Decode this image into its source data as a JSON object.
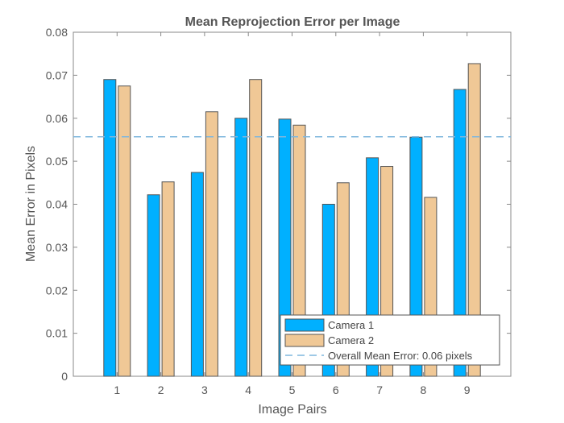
{
  "chart_data": {
    "type": "bar",
    "title": "Mean Reprojection Error per Image",
    "xlabel": "Image Pairs",
    "ylabel": "Mean Error in Pixels",
    "categories": [
      "1",
      "2",
      "3",
      "4",
      "5",
      "6",
      "7",
      "8",
      "9"
    ],
    "series": [
      {
        "name": "Camera 1",
        "color": "#00b0ff",
        "values": [
          0.069,
          0.0422,
          0.0474,
          0.06,
          0.0598,
          0.04,
          0.0508,
          0.0556,
          0.0667
        ]
      },
      {
        "name": "Camera 2",
        "color": "#f0c896",
        "values": [
          0.0675,
          0.0452,
          0.0615,
          0.069,
          0.0584,
          0.045,
          0.0488,
          0.0416,
          0.0727
        ]
      }
    ],
    "overall_mean": 0.0557,
    "overall_mean_color": "#7fb7dd",
    "ylim": [
      0,
      0.08
    ],
    "yticks": [
      "0",
      "0.01",
      "0.02",
      "0.03",
      "0.04",
      "0.05",
      "0.06",
      "0.07",
      "0.08"
    ],
    "legend": {
      "position": "bottom-right",
      "entries": [
        "Camera 1",
        "Camera 2",
        "Overall Mean Error: 0.06 pixels"
      ]
    }
  }
}
